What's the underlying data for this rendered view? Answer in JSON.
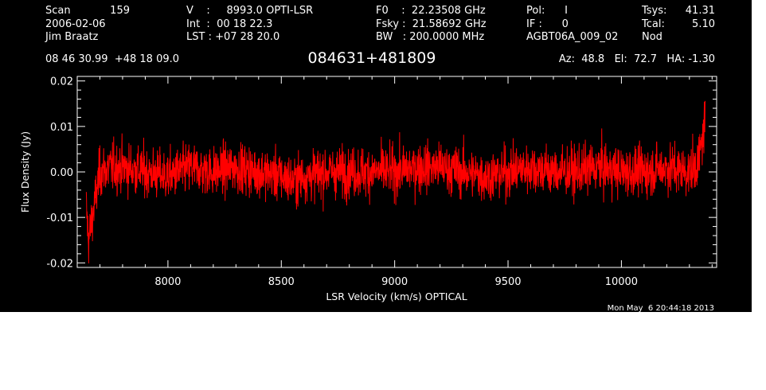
{
  "header": {
    "col1": {
      "scan_label": "Scan",
      "scan_value": "159",
      "date": "2006-02-06",
      "observer": "Jim Braatz"
    },
    "col2": {
      "v_line": "V    :     8993.0 OPTI-LSR",
      "int_line": "Int  :  00 18 22.3",
      "lst_line": "LST : +07 28 20.0"
    },
    "col3": {
      "f0_line": "F0    :  22.23508 GHz",
      "fsky_line": "Fsky :  21.58692 GHz",
      "bw_line": "BW   : 200.0000 MHz"
    },
    "col4": {
      "pol_line": "Pol:      I",
      "if_line": "IF :      0",
      "project": "AGBT06A_009_02"
    },
    "col5": {
      "tsys_label": "Tsys:",
      "tsys_value": "41.31",
      "tcal_label": "Tcal:",
      "tcal_value": "5.10",
      "mode": "Nod"
    },
    "coords": "08 46 30.99  +48 18 09.0",
    "source": "084631+481809",
    "az_el_ha": "Az:  48.8   El:  72.7   HA: -1.30"
  },
  "timestamp": "Mon May  6 20:44:18 2013",
  "colors": {
    "background": "#000000",
    "axes": "#ffffff",
    "trace": "#ff0000",
    "page": "#ffffff"
  },
  "chart_data": {
    "type": "line",
    "xlabel": "LSR Velocity (km/s) OPTICAL",
    "ylabel": "Flux Density (Jy)",
    "xlim": [
      7600,
      10420
    ],
    "ylim": [
      -0.021,
      0.021
    ],
    "x_ticks": [
      8000,
      8500,
      9000,
      9500,
      10000
    ],
    "x_tick_labels": [
      "8000",
      "8500",
      "9000",
      "9500",
      "10000"
    ],
    "y_ticks": [
      -0.02,
      -0.01,
      0.0,
      0.01,
      0.02
    ],
    "y_tick_labels": [
      "-0.02",
      "-0.01",
      "0.00",
      "0.01",
      "0.02"
    ],
    "grid": false,
    "legend": "none",
    "series": [
      {
        "x": [
          7640,
          7650,
          7660,
          7680,
          7700,
          7750,
          7800,
          7900,
          8000,
          8100,
          8200,
          8300,
          8400,
          8500,
          8550,
          8600,
          8700,
          8800,
          8900,
          9000,
          9100,
          9200,
          9300,
          9400,
          9500,
          9600,
          9700,
          9800,
          9900,
          10000,
          10100,
          10200,
          10300,
          10340,
          10360,
          10370
        ],
        "y": [
          -0.008,
          -0.015,
          -0.012,
          -0.006,
          0.0,
          0.001,
          0.001,
          0.0,
          -0.001,
          0.001,
          0.0,
          0.001,
          0.0,
          -0.001,
          -0.002,
          -0.001,
          0.0,
          0.0,
          0.0,
          0.0,
          0.001,
          0.001,
          0.0,
          -0.001,
          0.0,
          0.001,
          0.0,
          0.0,
          0.001,
          0.0,
          0.0,
          0.001,
          0.0,
          0.002,
          0.008,
          0.012
        ],
        "noise_rms_jy": 0.003
      }
    ]
  }
}
